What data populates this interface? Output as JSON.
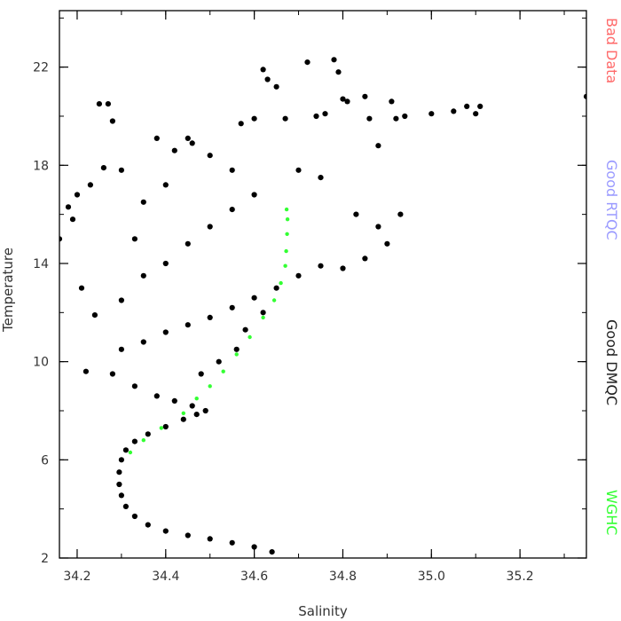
{
  "chart_data": {
    "type": "scatter",
    "title": "",
    "xlabel": "Salinity",
    "ylabel": "Temperature",
    "xlim": [
      34.16,
      35.35
    ],
    "ylim": [
      2.0,
      24.3
    ],
    "x_ticks": [
      34.2,
      34.4,
      34.6,
      34.8,
      35.0,
      35.2
    ],
    "x_tick_labels": [
      "34.2",
      "34.4",
      "34.6",
      "34.8",
      "35.0",
      "35.2"
    ],
    "y_ticks": [
      2,
      6,
      10,
      14,
      18,
      22
    ],
    "y_tick_labels": [
      "2",
      "6",
      "10",
      "14",
      "18",
      "22"
    ],
    "grid": false,
    "legend_placement": "right (vertical text)",
    "legend": [
      {
        "label": "Bad Data",
        "color": "#ff6a6a"
      },
      {
        "label": "Good RTQC",
        "color": "#9a9aff"
      },
      {
        "label": "Good DMQC",
        "color": "#222222"
      },
      {
        "label": "WGHC",
        "color": "#33ff33"
      }
    ],
    "series": [
      {
        "name": "Good DMQC",
        "color": "#000000",
        "points": [
          [
            34.64,
            2.25
          ],
          [
            34.6,
            2.45
          ],
          [
            34.55,
            2.62
          ],
          [
            34.5,
            2.78
          ],
          [
            34.45,
            2.92
          ],
          [
            34.4,
            3.1
          ],
          [
            34.36,
            3.35
          ],
          [
            34.33,
            3.7
          ],
          [
            34.31,
            4.1
          ],
          [
            34.3,
            4.55
          ],
          [
            34.295,
            5.0
          ],
          [
            34.295,
            5.5
          ],
          [
            34.3,
            6.0
          ],
          [
            34.31,
            6.4
          ],
          [
            34.33,
            6.75
          ],
          [
            34.36,
            7.05
          ],
          [
            34.4,
            7.35
          ],
          [
            34.44,
            7.65
          ],
          [
            34.47,
            7.85
          ],
          [
            34.49,
            8.0
          ],
          [
            34.22,
            9.6
          ],
          [
            34.24,
            11.9
          ],
          [
            34.21,
            13.0
          ],
          [
            34.19,
            15.8
          ],
          [
            34.18,
            16.3
          ],
          [
            34.16,
            15.0
          ],
          [
            34.2,
            16.8
          ],
          [
            34.23,
            17.2
          ],
          [
            34.26,
            17.9
          ],
          [
            34.25,
            20.5
          ],
          [
            34.27,
            20.5
          ],
          [
            34.28,
            19.8
          ],
          [
            34.38,
            19.1
          ],
          [
            34.42,
            18.6
          ],
          [
            34.45,
            19.1
          ],
          [
            34.46,
            18.9
          ],
          [
            34.5,
            18.4
          ],
          [
            34.55,
            17.8
          ],
          [
            34.57,
            19.7
          ],
          [
            34.6,
            19.9
          ],
          [
            34.62,
            21.9
          ],
          [
            34.63,
            21.5
          ],
          [
            34.65,
            21.2
          ],
          [
            34.67,
            19.9
          ],
          [
            34.72,
            22.2
          ],
          [
            34.74,
            20.0
          ],
          [
            34.76,
            20.1
          ],
          [
            34.78,
            22.3
          ],
          [
            34.79,
            21.8
          ],
          [
            34.8,
            20.7
          ],
          [
            34.81,
            20.6
          ],
          [
            34.85,
            20.8
          ],
          [
            34.86,
            19.9
          ],
          [
            34.88,
            18.8
          ],
          [
            34.91,
            20.6
          ],
          [
            34.92,
            19.9
          ],
          [
            34.94,
            20.0
          ],
          [
            35.0,
            20.1
          ],
          [
            35.05,
            20.2
          ],
          [
            35.08,
            20.4
          ],
          [
            35.1,
            20.1
          ],
          [
            35.11,
            20.4
          ],
          [
            35.35,
            20.8
          ],
          [
            34.7,
            17.8
          ],
          [
            34.75,
            17.5
          ],
          [
            34.83,
            16.0
          ],
          [
            34.88,
            15.5
          ],
          [
            34.93,
            16.0
          ],
          [
            34.9,
            14.8
          ],
          [
            34.85,
            14.2
          ],
          [
            34.8,
            13.8
          ],
          [
            34.75,
            13.9
          ],
          [
            34.7,
            13.5
          ],
          [
            34.65,
            13.0
          ],
          [
            34.6,
            12.6
          ],
          [
            34.55,
            12.2
          ],
          [
            34.5,
            11.8
          ],
          [
            34.45,
            11.5
          ],
          [
            34.4,
            11.2
          ],
          [
            34.35,
            10.8
          ],
          [
            34.3,
            10.5
          ],
          [
            34.28,
            9.5
          ],
          [
            34.33,
            9.0
          ],
          [
            34.38,
            8.6
          ],
          [
            34.42,
            8.4
          ],
          [
            34.46,
            8.2
          ],
          [
            34.48,
            9.5
          ],
          [
            34.52,
            10.0
          ],
          [
            34.56,
            10.5
          ],
          [
            34.58,
            11.3
          ],
          [
            34.62,
            12.0
          ],
          [
            34.3,
            12.5
          ],
          [
            34.35,
            13.5
          ],
          [
            34.4,
            14.0
          ],
          [
            34.45,
            14.8
          ],
          [
            34.5,
            15.5
          ],
          [
            34.55,
            16.2
          ],
          [
            34.6,
            16.8
          ],
          [
            34.35,
            16.5
          ],
          [
            34.4,
            17.2
          ],
          [
            34.3,
            17.8
          ],
          [
            34.33,
            15.0
          ]
        ]
      },
      {
        "name": "WGHC",
        "color": "#33ff33",
        "points": [
          [
            34.32,
            6.3
          ],
          [
            34.35,
            6.8
          ],
          [
            34.39,
            7.3
          ],
          [
            34.44,
            7.9
          ],
          [
            34.47,
            8.5
          ],
          [
            34.5,
            9.0
          ],
          [
            34.53,
            9.6
          ],
          [
            34.56,
            10.3
          ],
          [
            34.59,
            11.0
          ],
          [
            34.62,
            11.8
          ],
          [
            34.645,
            12.5
          ],
          [
            34.66,
            13.2
          ],
          [
            34.67,
            13.9
          ],
          [
            34.672,
            14.5
          ],
          [
            34.674,
            15.2
          ],
          [
            34.675,
            15.8
          ],
          [
            34.673,
            16.2
          ]
        ]
      }
    ]
  }
}
